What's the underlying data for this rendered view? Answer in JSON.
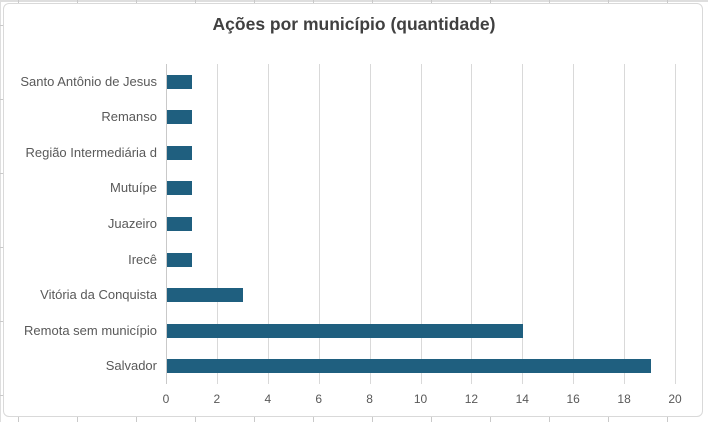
{
  "sheet": {
    "background": "#FFFFFF",
    "gridline_color": "#DEDEDE"
  },
  "chart": {
    "border_color": "#D9D9D9",
    "background": "#FFFFFF"
  },
  "chart_data": {
    "type": "bar",
    "orientation": "horizontal",
    "title": "Ações por município (quantidade)",
    "title_color": "#404040",
    "categories": [
      "Santo Antônio de Jesus",
      "Remanso",
      "Região Intermediária d",
      "Mutuípe",
      "Juazeiro",
      "Irecê",
      "Vitória da Conquista",
      "Remota sem município",
      "Salvador"
    ],
    "values": [
      1,
      1,
      1,
      1,
      1,
      1,
      3,
      14,
      19
    ],
    "xlabel": "",
    "ylabel": "",
    "xlim": [
      0,
      20
    ],
    "x_ticks": [
      0,
      2,
      4,
      6,
      8,
      10,
      12,
      14,
      16,
      18,
      20
    ],
    "bar_color": "#1F5F7F",
    "gridline_color": "#D9D9D9",
    "axis_line_color": "#C9C9C9",
    "label_color": "#595959",
    "grid": true,
    "legend": false,
    "data_labels": false
  }
}
